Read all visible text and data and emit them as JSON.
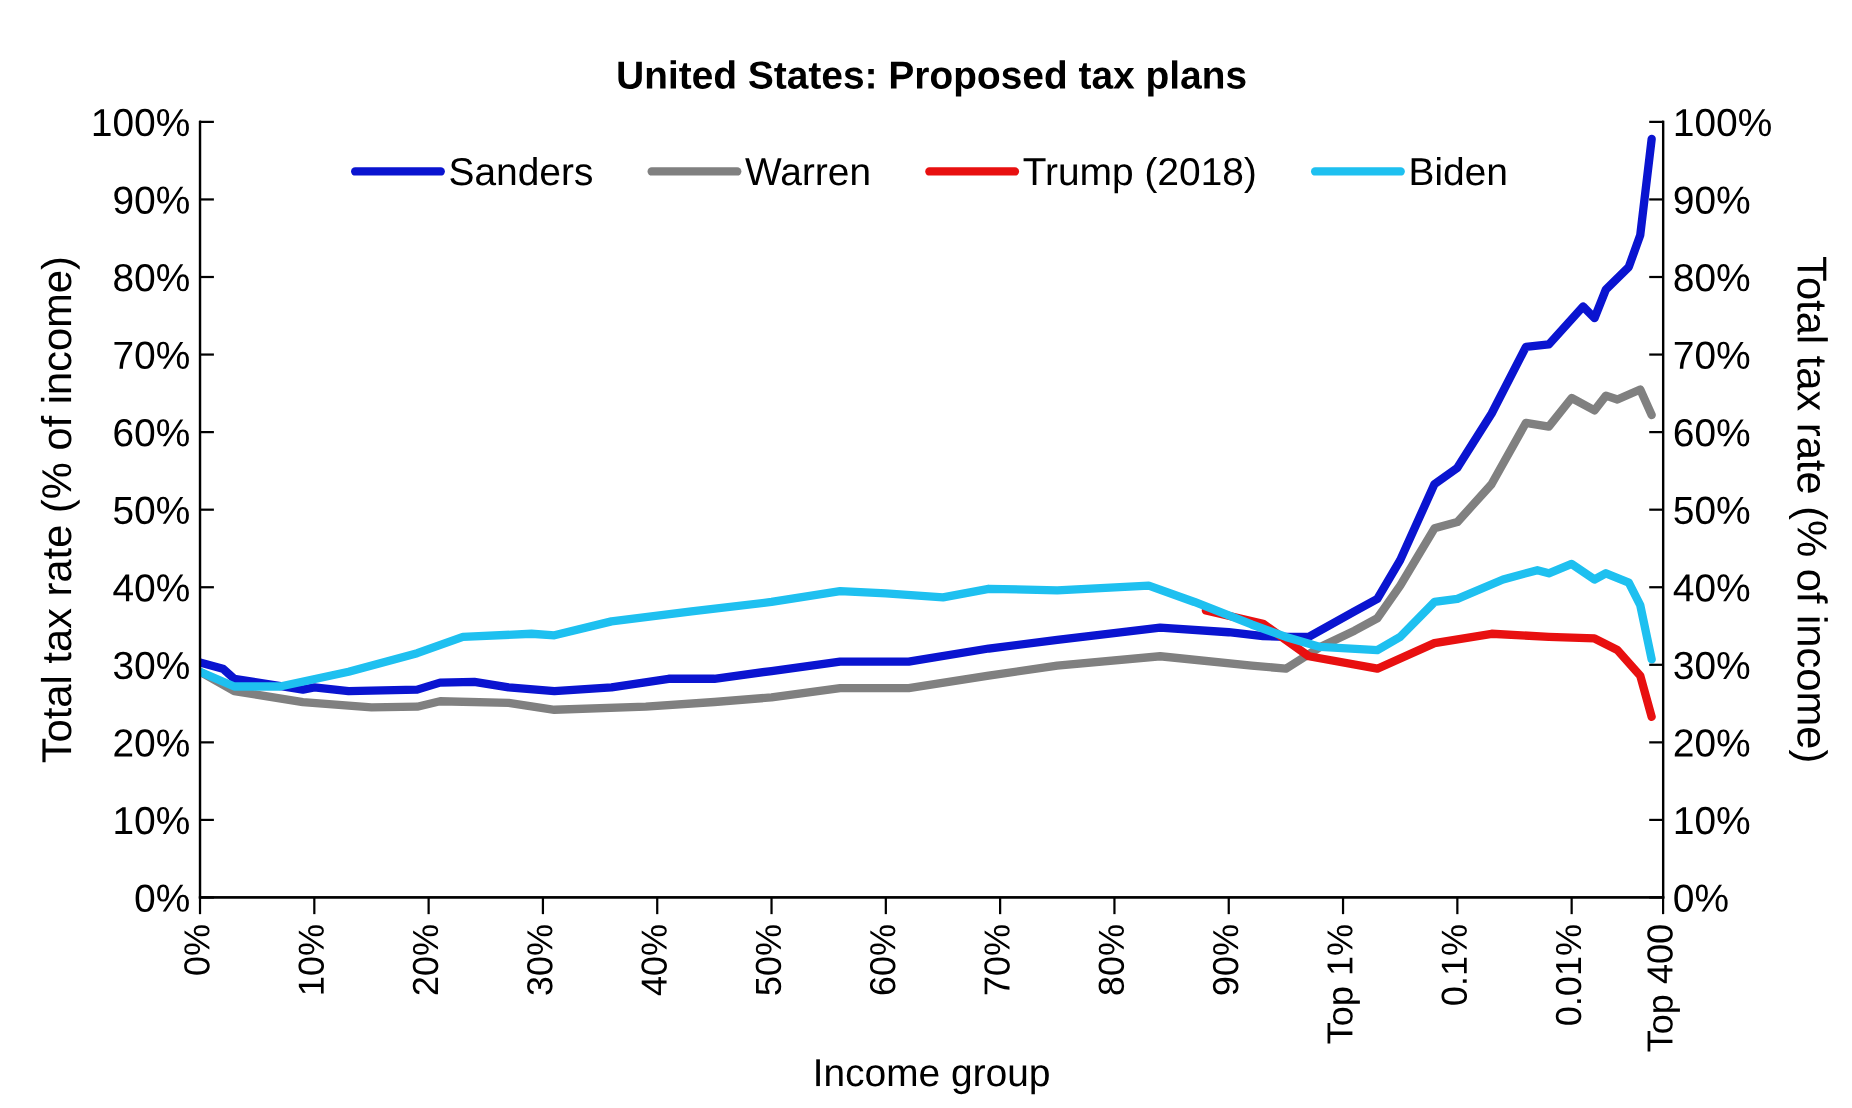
{
  "chart_data": {
    "type": "line",
    "title": "United States: Proposed tax plans",
    "xlabel": "Income group",
    "ylabel": "Total tax rate (% of income)",
    "y2label": "Total tax rate (% of income)",
    "categories": [
      "0%",
      null,
      null,
      null,
      null,
      null,
      null,
      null,
      null,
      null,
      "10%",
      null,
      null,
      null,
      null,
      null,
      null,
      null,
      null,
      null,
      "20%",
      null,
      null,
      null,
      null,
      null,
      null,
      null,
      null,
      null,
      "30%",
      null,
      null,
      null,
      null,
      null,
      null,
      null,
      null,
      null,
      "40%",
      null,
      null,
      null,
      null,
      null,
      null,
      null,
      null,
      null,
      "50%",
      null,
      null,
      null,
      null,
      null,
      null,
      null,
      null,
      null,
      "60%",
      null,
      null,
      null,
      null,
      null,
      null,
      null,
      null,
      null,
      "70%",
      null,
      null,
      null,
      null,
      null,
      null,
      null,
      null,
      null,
      "80%",
      null,
      null,
      null,
      null,
      null,
      null,
      null,
      null,
      null,
      "90%",
      null,
      null,
      null,
      null,
      null,
      null,
      null,
      null,
      null,
      "Top 1%",
      null,
      null,
      null,
      null,
      null,
      null,
      null,
      null,
      null,
      "0.1%",
      null,
      null,
      null,
      null,
      null,
      null,
      null,
      null,
      null,
      "0.01%",
      null,
      null,
      null,
      null,
      null,
      null,
      null,
      "Top 400"
    ],
    "ylim": [
      0,
      100
    ],
    "yticks": [
      {
        "value": 0,
        "label": "0%"
      },
      {
        "value": 10,
        "label": "10%"
      },
      {
        "value": 20,
        "label": "20%"
      },
      {
        "value": 30,
        "label": "30%"
      },
      {
        "value": 40,
        "label": "40%"
      },
      {
        "value": 50,
        "label": "50%"
      },
      {
        "value": 60,
        "label": "60%"
      },
      {
        "value": 70,
        "label": "70%"
      },
      {
        "value": 80,
        "label": "80%"
      },
      {
        "value": 90,
        "label": "90%"
      },
      {
        "value": 100,
        "label": "100%"
      }
    ],
    "y2lim": [
      0,
      100
    ],
    "y2ticks": [
      {
        "value": 0,
        "label": "0%"
      },
      {
        "value": 10,
        "label": "10%"
      },
      {
        "value": 20,
        "label": "20%"
      },
      {
        "value": 30,
        "label": "30%"
      },
      {
        "value": 40,
        "label": "40%"
      },
      {
        "value": 50,
        "label": "50%"
      },
      {
        "value": 60,
        "label": "60%"
      },
      {
        "value": 70,
        "label": "70%"
      },
      {
        "value": 80,
        "label": "80%"
      },
      {
        "value": 90,
        "label": "90%"
      },
      {
        "value": 100,
        "label": "100%"
      }
    ],
    "grid": false,
    "legend": "top",
    "marker": "none",
    "line_style": "solid",
    "series": [
      {
        "name": "Sanders",
        "color": "#0a14d0",
        "values": [
          30.3,
          null,
          29.5,
          28.2,
          null,
          null,
          null,
          null,
          null,
          26.8,
          27.1,
          null,
          null,
          26.6,
          null,
          null,
          null,
          null,
          null,
          26.8,
          null,
          27.7,
          null,
          null,
          27.8,
          null,
          null,
          27.1,
          null,
          null,
          null,
          26.6,
          null,
          null,
          null,
          null,
          27.1,
          null,
          null,
          null,
          null,
          28.2,
          null,
          null,
          null,
          28.2,
          null,
          null,
          null,
          null,
          29.2,
          null,
          null,
          null,
          null,
          null,
          30.4,
          null,
          null,
          null,
          null,
          null,
          30.4,
          null,
          null,
          null,
          null,
          null,
          null,
          32.1,
          null,
          null,
          null,
          null,
          null,
          33.2,
          null,
          null,
          null,
          null,
          null,
          null,
          null,
          null,
          34.8,
          null,
          null,
          null,
          null,
          null,
          34.2,
          null,
          null,
          33.7,
          null,
          33.6,
          null,
          33.6,
          null,
          null,
          null,
          36.9,
          null,
          38.5,
          null,
          43.5,
          null,
          null,
          53.3,
          null,
          55.4,
          null,
          null,
          62.4,
          null,
          null,
          71,
          null,
          71.3,
          null,
          null,
          76.2,
          74.7,
          78.4,
          null,
          81.3,
          85.4,
          97.8,
          null
        ]
      },
      {
        "name": "Warren",
        "color": "#808080",
        "values": [
          29.1,
          null,
          null,
          26.6,
          null,
          null,
          null,
          null,
          null,
          25.2,
          null,
          null,
          null,
          null,
          null,
          24.5,
          null,
          null,
          null,
          24.6,
          null,
          25.3,
          null,
          null,
          null,
          null,
          null,
          25.1,
          null,
          null,
          null,
          24.2,
          null,
          null,
          null,
          null,
          null,
          null,
          null,
          24.6,
          null,
          null,
          null,
          null,
          null,
          25.2,
          null,
          null,
          null,
          null,
          25.8,
          null,
          null,
          null,
          null,
          null,
          27,
          null,
          null,
          null,
          null,
          null,
          27,
          null,
          null,
          null,
          null,
          null,
          null,
          28.6,
          null,
          null,
          null,
          null,
          null,
          29.9,
          null,
          null,
          null,
          null,
          null,
          null,
          null,
          null,
          31.1,
          null,
          null,
          null,
          null,
          null,
          null,
          null,
          29.9,
          null,
          null,
          29.5,
          null,
          null,
          32.3,
          null,
          null,
          34.4,
          null,
          36,
          null,
          40.2,
          null,
          null,
          47.6,
          null,
          48.4,
          null,
          null,
          53.3,
          null,
          null,
          61.2,
          null,
          60.7,
          null,
          64.4,
          null,
          62.8,
          64.7,
          64.2,
          null,
          65.5,
          62.2,
          null
        ]
      },
      {
        "name": "Trump (2018)",
        "color": "#e81010",
        "values": [
          null,
          null,
          null,
          null,
          null,
          null,
          null,
          null,
          null,
          null,
          null,
          null,
          null,
          null,
          null,
          null,
          null,
          null,
          null,
          null,
          null,
          null,
          null,
          null,
          null,
          null,
          null,
          null,
          null,
          null,
          null,
          null,
          null,
          null,
          null,
          null,
          null,
          null,
          null,
          null,
          null,
          null,
          null,
          null,
          null,
          null,
          null,
          null,
          null,
          null,
          null,
          null,
          null,
          null,
          null,
          null,
          null,
          null,
          null,
          null,
          null,
          null,
          null,
          null,
          null,
          null,
          null,
          null,
          null,
          null,
          null,
          null,
          null,
          null,
          null,
          null,
          null,
          null,
          null,
          null,
          null,
          null,
          null,
          null,
          null,
          null,
          null,
          null,
          37,
          null,
          null,
          null,
          null,
          35.3,
          null,
          null,
          null,
          31.1,
          null,
          null,
          null,
          null,
          null,
          29.5,
          null,
          null,
          null,
          null,
          32.8,
          null,
          null,
          null,
          null,
          34,
          null,
          null,
          null,
          null,
          33.6,
          null,
          null,
          null,
          33.4,
          null,
          31.9,
          null,
          28.6,
          23.3,
          null
        ]
      },
      {
        "name": "Biden",
        "color": "#1ec0f0",
        "values": [
          29.1,
          null,
          null,
          27.2,
          null,
          null,
          null,
          27.2,
          null,
          null,
          null,
          null,
          null,
          29.1,
          null,
          null,
          null,
          null,
          null,
          31.5,
          null,
          null,
          null,
          33.6,
          null,
          null,
          null,
          null,
          null,
          34,
          null,
          33.8,
          null,
          null,
          null,
          null,
          35.6,
          null,
          null,
          null,
          null,
          null,
          null,
          36.9,
          null,
          null,
          null,
          null,
          null,
          null,
          38.1,
          null,
          null,
          null,
          null,
          null,
          39.5,
          null,
          null,
          null,
          39.2,
          null,
          null,
          null,
          null,
          38.7,
          null,
          null,
          null,
          39.8,
          null,
          null,
          null,
          null,
          null,
          39.6,
          null,
          null,
          null,
          null,
          null,
          null,
          null,
          40.2,
          null,
          null,
          null,
          38.1,
          null,
          null,
          null,
          null,
          35.2,
          null,
          null,
          33.6,
          null,
          null,
          32.3,
          null,
          null,
          null,
          null,
          31.9,
          null,
          33.6,
          null,
          null,
          38.1,
          null,
          38.5,
          null,
          null,
          null,
          41,
          null,
          null,
          42.2,
          41.8,
          null,
          43,
          null,
          41,
          41.8,
          null,
          40.6,
          37.7,
          30.7,
          null
        ]
      }
    ]
  }
}
